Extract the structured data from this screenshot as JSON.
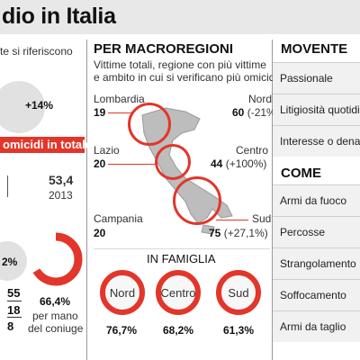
{
  "header": {
    "title": "dio in Italia"
  },
  "left": {
    "intro_text": "te si riferiscono",
    "increase": "+14%",
    "banner": "omicidi in totale",
    "value": "53,4",
    "year": "2013",
    "partial_pct": "2%",
    "fraction_top": "55",
    "fraction_a": "18",
    "fraction_b": "8",
    "spouse_pct": "66,4%",
    "spouse_label_1": "per mano",
    "spouse_label_2": "del coniuge"
  },
  "middle": {
    "heading": "PER MACROREGIONI",
    "subtitle_1": "Vittime totali, regione con più vittime",
    "subtitle_2": "e ambito in cui si verificano più omicidi",
    "regions": [
      {
        "name": "Lombardia",
        "value": "19"
      },
      {
        "name": "Nord",
        "value": "60",
        "change": "(-21%)"
      },
      {
        "name": "Lazio",
        "value": "20"
      },
      {
        "name": "Centro",
        "value": "44",
        "change": "(+100%)"
      },
      {
        "name": "Campania",
        "value": "20"
      },
      {
        "name": "Sud",
        "value": "75",
        "change": "(+27,1%)"
      }
    ],
    "family_heading": "IN FAMIGLIA",
    "family": [
      {
        "label": "Nord",
        "pct": "76,7%"
      },
      {
        "label": "Centro",
        "pct": "68,2%"
      },
      {
        "label": "Sud",
        "pct": "61,3%"
      }
    ]
  },
  "right": {
    "movente_heading": "MOVENTE",
    "movente": [
      "Passionale",
      "Litigiosità quotidi",
      "Interesse o denar"
    ],
    "come_heading": "COME",
    "come": [
      "Armi da fuoco",
      "Percosse",
      "Strangolamento",
      "Soffocamento",
      "Armi da taglio"
    ]
  },
  "colors": {
    "accent": "#e2362b",
    "header_bg": "#e8e8e8",
    "row_bg": "#f1f1f1"
  }
}
